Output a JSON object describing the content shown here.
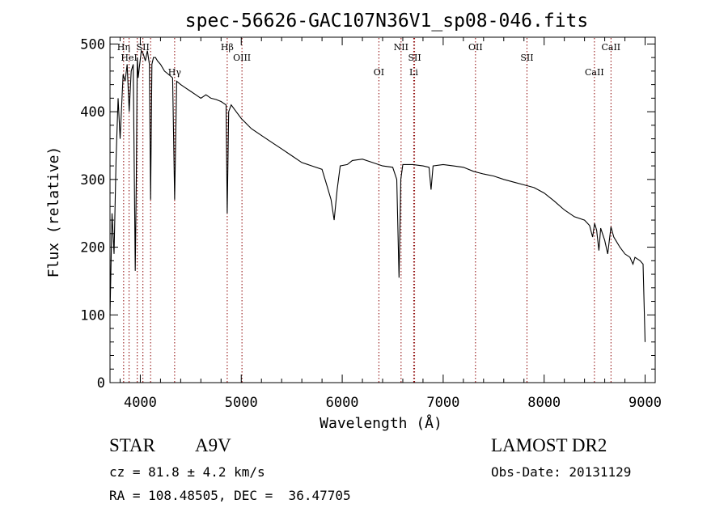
{
  "chart_data": {
    "type": "line",
    "title": "spec-56626-GAC107N36V1_sp08-046.fits",
    "xlabel": "Wavelength (Å)",
    "ylabel": "Flux (relative)",
    "xlim": [
      3700,
      9100
    ],
    "ylim": [
      0,
      510
    ],
    "x_ticks": [
      4000,
      5000,
      6000,
      7000,
      8000,
      9000
    ],
    "y_ticks": [
      0,
      100,
      200,
      300,
      400,
      500
    ],
    "grid": false,
    "line_color": "#000000",
    "marker_color": "#8b0000",
    "series": [
      {
        "x": [
          3700,
          3720,
          3740,
          3760,
          3780,
          3800,
          3830,
          3850,
          3870,
          3890,
          3910,
          3930,
          3950,
          3960,
          3970,
          3980,
          3990,
          4010,
          4030,
          4050,
          4070,
          4090,
          4102,
          4115,
          4130,
          4150,
          4170,
          4200,
          4240,
          4280,
          4320,
          4340,
          4360,
          4400,
          4450,
          4500,
          4550,
          4600,
          4650,
          4700,
          4750,
          4800,
          4850,
          4861,
          4875,
          4900,
          4950,
          5000,
          5100,
          5200,
          5300,
          5400,
          5500,
          5600,
          5700,
          5800,
          5850,
          5890,
          5920,
          5950,
          5980,
          6050,
          6100,
          6200,
          6300,
          6400,
          6500,
          6540,
          6563,
          6580,
          6600,
          6700,
          6800,
          6860,
          6880,
          6900,
          7000,
          7100,
          7200,
          7300,
          7400,
          7500,
          7600,
          7700,
          7800,
          7900,
          8000,
          8100,
          8200,
          8300,
          8400,
          8450,
          8480,
          8500,
          8520,
          8542,
          8560,
          8600,
          8630,
          8662,
          8690,
          8750,
          8800,
          8850,
          8880,
          8900,
          8950,
          8980,
          9000
        ],
        "y": [
          100,
          250,
          190,
          330,
          420,
          360,
          455,
          445,
          470,
          400,
          460,
          470,
          165,
          300,
          480,
          450,
          465,
          490,
          485,
          475,
          490,
          470,
          270,
          470,
          480,
          480,
          475,
          470,
          460,
          455,
          450,
          270,
          445,
          440,
          435,
          430,
          425,
          420,
          425,
          420,
          418,
          415,
          410,
          250,
          400,
          410,
          400,
          390,
          375,
          365,
          355,
          345,
          335,
          325,
          320,
          315,
          290,
          270,
          240,
          285,
          320,
          322,
          328,
          330,
          325,
          320,
          318,
          300,
          155,
          300,
          322,
          322,
          320,
          318,
          285,
          320,
          322,
          320,
          318,
          312,
          308,
          305,
          300,
          296,
          292,
          288,
          280,
          268,
          255,
          245,
          240,
          232,
          215,
          235,
          225,
          195,
          228,
          210,
          190,
          230,
          215,
          200,
          190,
          185,
          175,
          185,
          180,
          175,
          60
        ]
      }
    ],
    "line_markers": [
      {
        "label": "Hη",
        "x": 3835
      },
      {
        "label": "HeI",
        "x": 3889
      },
      {
        "label": "",
        "x": 3970
      },
      {
        "label": "SII",
        "x": 4026
      },
      {
        "label": "",
        "x": 4102
      },
      {
        "label": "Hγ",
        "x": 4340
      },
      {
        "label": "Hβ",
        "x": 4861
      },
      {
        "label": "OIII",
        "x": 5007
      },
      {
        "label": "OI",
        "x": 6363
      },
      {
        "label": "NII",
        "x": 6583
      },
      {
        "label": "SII",
        "x": 6717
      },
      {
        "label": "Li",
        "x": 6708
      },
      {
        "label": "OII",
        "x": 7320
      },
      {
        "label": "SII",
        "x": 7830
      },
      {
        "label": "CaII",
        "x": 8498
      },
      {
        "label": "CaII",
        "x": 8662
      }
    ]
  },
  "info": {
    "object_class": "STAR",
    "subclass": "A9V",
    "cz": "cz = 81.8 ± 4.2 km/s",
    "coords": "RA = 108.48505, DEC =  36.47705",
    "survey": "LAMOST DR2",
    "obs_date": "Obs-Date: 20131129"
  }
}
